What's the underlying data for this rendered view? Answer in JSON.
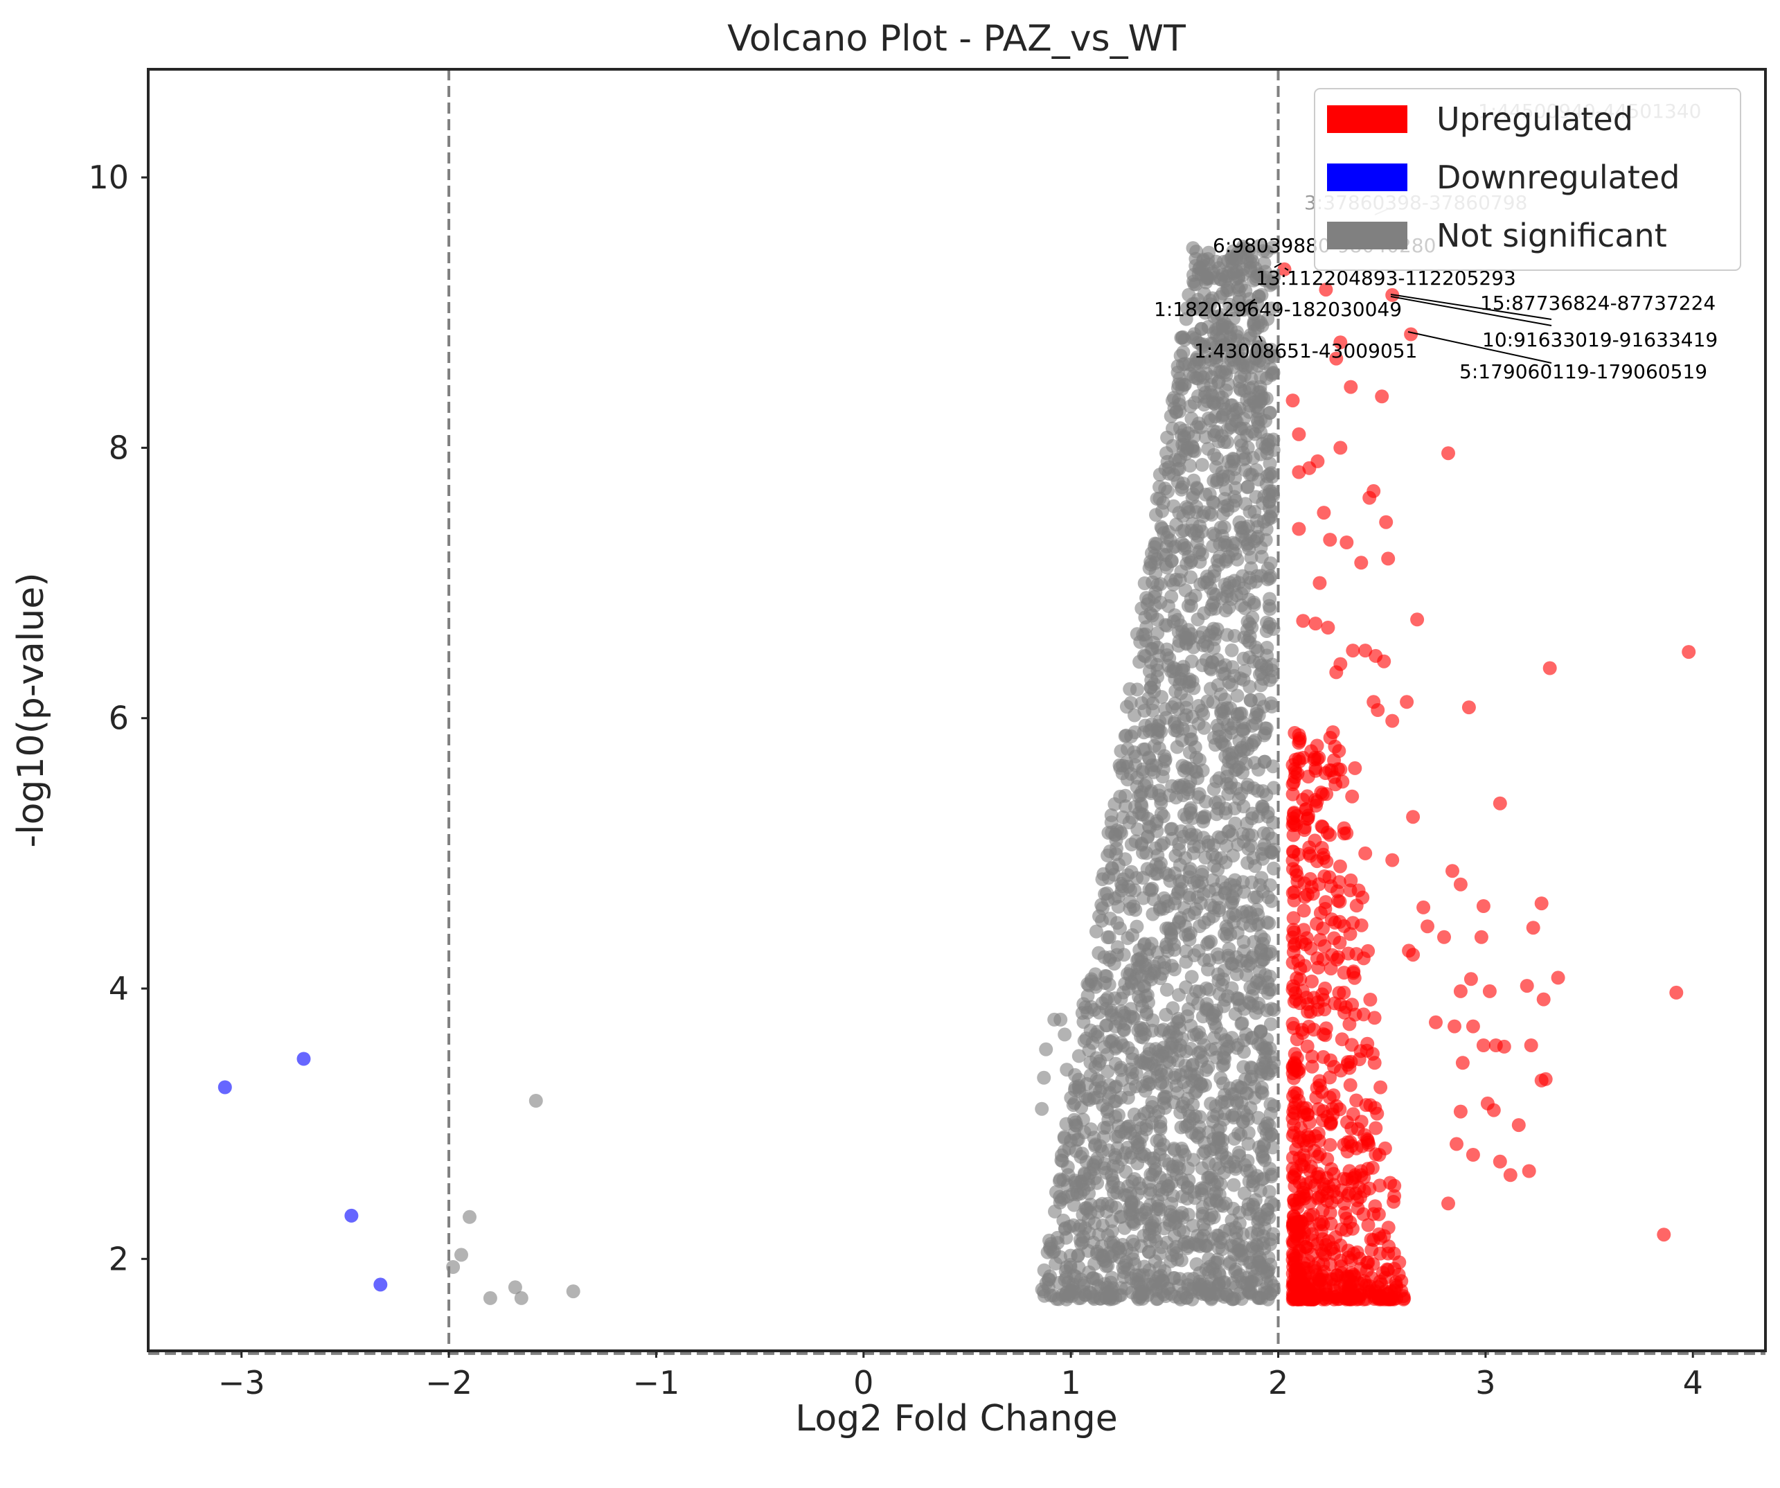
{
  "chart_data": {
    "type": "scatter",
    "title": "Volcano Plot - PAZ_vs_WT",
    "xlabel": "Log2 Fold Change",
    "ylabel": "-log10(p-value)",
    "xlim": [
      -3.45,
      4.35
    ],
    "ylim": [
      1.32,
      10.8
    ],
    "x_ticks": [
      -3,
      -2,
      -1,
      0,
      1,
      2,
      3,
      4
    ],
    "x_tick_labels": [
      "−3",
      "−2",
      "−1",
      "0",
      "1",
      "2",
      "3",
      "4"
    ],
    "y_ticks": [
      2,
      4,
      6,
      8,
      10
    ],
    "y_tick_labels": [
      "2",
      "4",
      "6",
      "8",
      "10"
    ],
    "grid": false,
    "thresholds": {
      "fc_low": -2,
      "fc_high": 2,
      "neg_log10_p": 1.3
    },
    "legend": {
      "position": "top-right",
      "entries": [
        {
          "label": "Upregulated",
          "color": "#ff0000"
        },
        {
          "label": "Downregulated",
          "color": "#0000ff"
        },
        {
          "label": "Not significant",
          "color": "#808080"
        }
      ]
    },
    "series": [
      {
        "name": "Downregulated",
        "color": "#0000ff",
        "points": [
          [
            -3.08,
            3.27
          ],
          [
            -2.7,
            3.48
          ],
          [
            -2.47,
            2.32
          ],
          [
            -2.33,
            1.81
          ]
        ]
      },
      {
        "name": "Not significant",
        "color": "#808080",
        "outliers": [
          [
            -1.98,
            1.94
          ],
          [
            -1.94,
            2.03
          ],
          [
            -1.9,
            2.31
          ],
          [
            -1.8,
            1.71
          ],
          [
            -1.68,
            1.79
          ],
          [
            -1.65,
            1.71
          ],
          [
            -1.58,
            3.17
          ],
          [
            -1.4,
            1.76
          ],
          [
            0.86,
            3.11
          ],
          [
            0.87,
            3.34
          ],
          [
            0.88,
            3.55
          ],
          [
            0.92,
            3.77
          ],
          [
            0.95,
            3.77
          ],
          [
            0.97,
            3.66
          ],
          [
            0.98,
            3.4
          ],
          [
            1.02,
            3.36
          ],
          [
            1.02,
            2.58
          ],
          [
            1.05,
            3.12
          ]
        ],
        "cloud": {
          "x_range": [
            0.85,
            2.0
          ],
          "y_range": [
            1.7,
            9.5
          ],
          "description_only": false
        }
      },
      {
        "name": "Upregulated",
        "color": "#ff0000",
        "points": [
          [
            2.03,
            9.32
          ],
          [
            2.07,
            8.35
          ],
          [
            2.1,
            8.1
          ],
          [
            2.1,
            7.82
          ],
          [
            2.1,
            7.4
          ],
          [
            2.15,
            7.85
          ],
          [
            2.19,
            7.9
          ],
          [
            2.2,
            7.0
          ],
          [
            2.22,
            7.52
          ],
          [
            2.25,
            7.32
          ],
          [
            2.23,
            9.17
          ],
          [
            2.28,
            8.66
          ],
          [
            2.3,
            8.78
          ],
          [
            2.3,
            8.0
          ],
          [
            2.33,
            7.3
          ],
          [
            2.35,
            8.45
          ],
          [
            2.4,
            7.15
          ],
          [
            2.44,
            7.63
          ],
          [
            2.46,
            7.68
          ],
          [
            2.5,
            8.38
          ],
          [
            2.52,
            7.45
          ],
          [
            2.53,
            7.18
          ],
          [
            2.55,
            9.13
          ],
          [
            2.64,
            8.84
          ],
          [
            2.82,
            7.96
          ],
          [
            2.12,
            6.72
          ],
          [
            2.18,
            6.7
          ],
          [
            2.24,
            6.67
          ],
          [
            2.28,
            6.34
          ],
          [
            2.3,
            6.4
          ],
          [
            2.36,
            6.5
          ],
          [
            2.42,
            6.5
          ],
          [
            2.47,
            6.46
          ],
          [
            2.51,
            6.42
          ],
          [
            2.46,
            6.12
          ],
          [
            2.48,
            6.06
          ],
          [
            2.62,
            6.12
          ],
          [
            2.55,
            5.98
          ],
          [
            2.67,
            6.73
          ],
          [
            2.92,
            6.08
          ],
          [
            3.31,
            6.37
          ],
          [
            3.98,
            6.49
          ],
          [
            2.1,
            5.7
          ],
          [
            2.18,
            5.63
          ],
          [
            2.3,
            5.62
          ],
          [
            2.37,
            5.63
          ],
          [
            2.21,
            5.2
          ],
          [
            2.65,
            5.27
          ],
          [
            3.07,
            5.37
          ],
          [
            2.35,
            4.8
          ],
          [
            2.42,
            5.0
          ],
          [
            2.55,
            4.95
          ],
          [
            2.7,
            4.6
          ],
          [
            2.88,
            4.77
          ],
          [
            2.84,
            4.87
          ],
          [
            2.99,
            4.61
          ],
          [
            3.27,
            4.63
          ],
          [
            3.23,
            4.45
          ],
          [
            2.72,
            4.46
          ],
          [
            2.8,
            4.38
          ],
          [
            2.98,
            4.38
          ],
          [
            2.63,
            4.28
          ],
          [
            2.65,
            4.25
          ],
          [
            2.88,
            3.98
          ],
          [
            2.93,
            4.07
          ],
          [
            3.02,
            3.98
          ],
          [
            3.2,
            4.02
          ],
          [
            3.28,
            3.92
          ],
          [
            3.35,
            4.08
          ],
          [
            3.92,
            3.97
          ],
          [
            2.76,
            3.75
          ],
          [
            2.85,
            3.72
          ],
          [
            2.94,
            3.72
          ],
          [
            2.99,
            3.58
          ],
          [
            3.05,
            3.58
          ],
          [
            3.09,
            3.57
          ],
          [
            3.22,
            3.58
          ],
          [
            3.27,
            3.32
          ],
          [
            3.29,
            3.33
          ],
          [
            2.89,
            3.45
          ],
          [
            3.01,
            3.15
          ],
          [
            2.88,
            3.09
          ],
          [
            3.04,
            3.1
          ],
          [
            3.16,
            2.99
          ],
          [
            2.86,
            2.85
          ],
          [
            2.94,
            2.77
          ],
          [
            3.07,
            2.72
          ],
          [
            3.12,
            2.62
          ],
          [
            3.21,
            2.65
          ],
          [
            2.82,
            2.41
          ],
          [
            3.86,
            2.18
          ],
          [
            2.53,
            2.04
          ],
          [
            2.4,
            1.82
          ],
          [
            2.32,
            1.8
          ],
          [
            2.12,
            1.73
          ]
        ],
        "cloud": {
          "x_range": [
            2.0,
            2.6
          ],
          "y_range": [
            1.7,
            5.5
          ]
        }
      }
    ],
    "annotations": [
      {
        "text": "1:44500940-44501340",
        "faded": true
      },
      {
        "text": "3:37860398-37860798",
        "faded": true
      },
      {
        "text": "6:98039880-98040280",
        "faded": false
      },
      {
        "text": "13:112204893-112205293",
        "faded": false
      },
      {
        "text": "15:87736824-87737224",
        "faded": false
      },
      {
        "text": "1:182029649-182030049",
        "faded": false
      },
      {
        "text": "10:91633019-91633419",
        "faded": false
      },
      {
        "text": "1:43008651-43009051",
        "faded": false
      },
      {
        "text": "5:179060119-179060519",
        "faded": false
      }
    ]
  }
}
